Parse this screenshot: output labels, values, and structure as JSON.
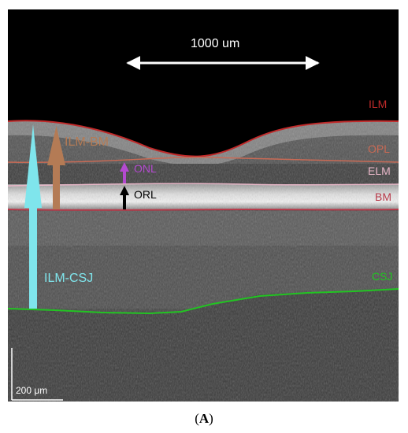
{
  "figure": {
    "scale_top": "1000 um",
    "scale_bottom": "200 μm",
    "layers": {
      "ilm": "ILM",
      "opl": "OPL",
      "elm": "ELM",
      "bm": "BM",
      "csj": "CSJ"
    },
    "measurements": {
      "ilm_bm": "ILM-BM",
      "onl": "ONL",
      "orl": "ORL",
      "ilm_csj": "ILM-CSJ"
    },
    "colors": {
      "ilm": "#c02a2a",
      "opl": "#c96a55",
      "elm": "#e8b7c8",
      "bm": "#b83a4a",
      "csj": "#22c422",
      "ilm_bm_arrow": "#b47b55",
      "onl_arrow": "#b44ad0",
      "orl_arrow": "#000000",
      "ilm_csj_arrow": "#7fe5ec"
    }
  },
  "caption": {
    "open": "(",
    "letter": "A",
    "close": ")"
  }
}
